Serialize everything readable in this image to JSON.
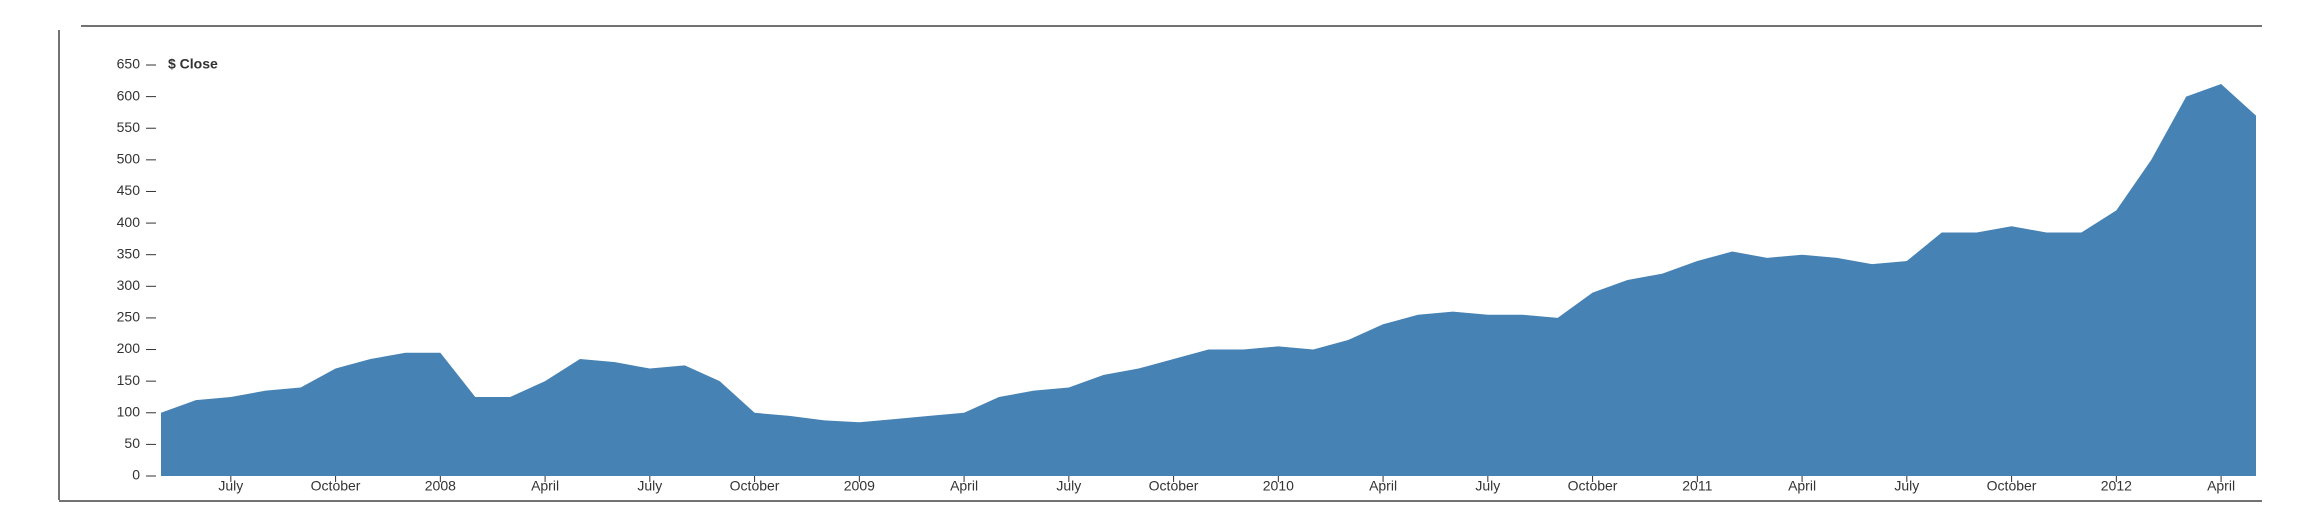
{
  "chart_data": {
    "type": "area",
    "title": "$ Close",
    "color": "#4682b4",
    "x": [
      "2007-05",
      "2007-06",
      "2007-07",
      "2007-08",
      "2007-09",
      "2007-10",
      "2007-11",
      "2007-12",
      "2008-01",
      "2008-02",
      "2008-03",
      "2008-04",
      "2008-05",
      "2008-06",
      "2008-07",
      "2008-08",
      "2008-09",
      "2008-10",
      "2008-11",
      "2008-12",
      "2009-01",
      "2009-02",
      "2009-03",
      "2009-04",
      "2009-05",
      "2009-06",
      "2009-07",
      "2009-08",
      "2009-09",
      "2009-10",
      "2009-11",
      "2009-12",
      "2010-01",
      "2010-02",
      "2010-03",
      "2010-04",
      "2010-05",
      "2010-06",
      "2010-07",
      "2010-08",
      "2010-09",
      "2010-10",
      "2010-11",
      "2010-12",
      "2011-01",
      "2011-02",
      "2011-03",
      "2011-04",
      "2011-05",
      "2011-06",
      "2011-07",
      "2011-08",
      "2011-09",
      "2011-10",
      "2011-11",
      "2011-12",
      "2012-01",
      "2012-02",
      "2012-03",
      "2012-04",
      "2012-05"
    ],
    "values": [
      100,
      120,
      125,
      135,
      140,
      170,
      185,
      195,
      195,
      125,
      125,
      150,
      185,
      180,
      170,
      175,
      150,
      100,
      95,
      88,
      85,
      90,
      95,
      100,
      125,
      135,
      140,
      160,
      170,
      185,
      200,
      200,
      205,
      200,
      215,
      240,
      255,
      260,
      255,
      255,
      250,
      290,
      310,
      320,
      340,
      355,
      345,
      350,
      345,
      335,
      340,
      385,
      385,
      395,
      385,
      385,
      420,
      500,
      600,
      620,
      570
    ],
    "xlim": [
      "2007-05",
      "2012-05"
    ],
    "xticks": [
      {
        "value": "2007-07",
        "label": "July"
      },
      {
        "value": "2007-10",
        "label": "October"
      },
      {
        "value": "2008-01",
        "label": "2008"
      },
      {
        "value": "2008-04",
        "label": "April"
      },
      {
        "value": "2008-07",
        "label": "July"
      },
      {
        "value": "2008-10",
        "label": "October"
      },
      {
        "value": "2009-01",
        "label": "2009"
      },
      {
        "value": "2009-04",
        "label": "April"
      },
      {
        "value": "2009-07",
        "label": "July"
      },
      {
        "value": "2009-10",
        "label": "October"
      },
      {
        "value": "2010-01",
        "label": "2010"
      },
      {
        "value": "2010-04",
        "label": "April"
      },
      {
        "value": "2010-07",
        "label": "July"
      },
      {
        "value": "2010-10",
        "label": "October"
      },
      {
        "value": "2011-01",
        "label": "2011"
      },
      {
        "value": "2011-04",
        "label": "April"
      },
      {
        "value": "2011-07",
        "label": "July"
      },
      {
        "value": "2011-10",
        "label": "October"
      },
      {
        "value": "2012-01",
        "label": "2012"
      },
      {
        "value": "2012-04",
        "label": "April"
      }
    ],
    "ylim": [
      0,
      650
    ],
    "yticks": [
      0,
      50,
      100,
      150,
      200,
      250,
      300,
      350,
      400,
      450,
      500,
      550,
      600,
      650
    ]
  }
}
